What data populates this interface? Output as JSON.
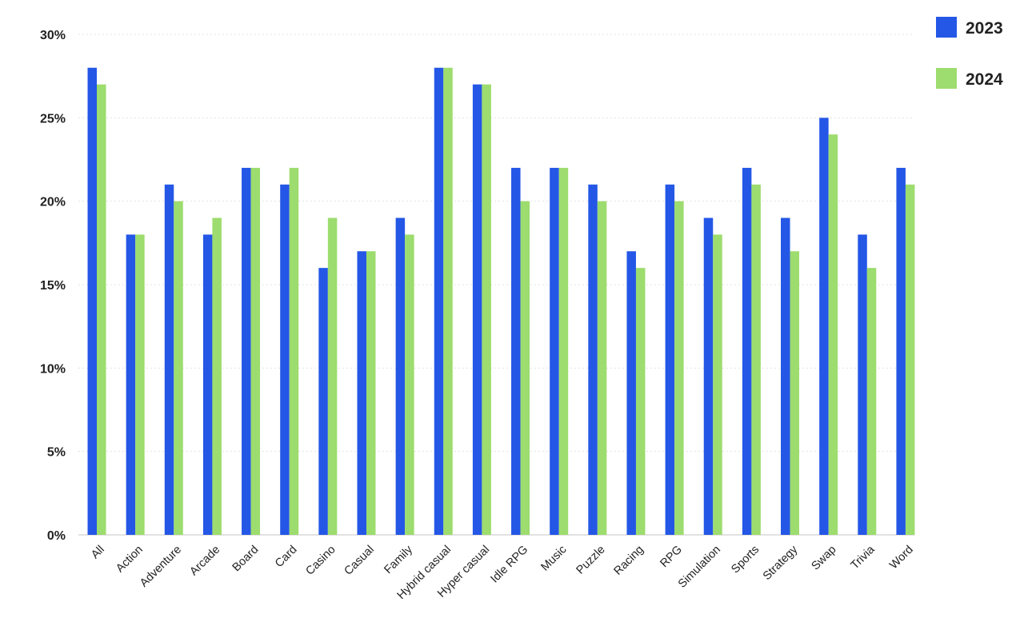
{
  "chart_data": {
    "type": "bar",
    "title": "",
    "xlabel": "",
    "ylabel": "",
    "ylim": [
      0,
      30
    ],
    "y_ticks": [
      0,
      5,
      10,
      15,
      20,
      25,
      30
    ],
    "y_tick_labels": [
      "0%",
      "5%",
      "10%",
      "15%",
      "20%",
      "25%",
      "30%"
    ],
    "grid": "horizontal dotted",
    "legend_position": "top-right",
    "categories": [
      "All",
      "Action",
      "Adventure",
      "Arcade",
      "Board",
      "Card",
      "Casino",
      "Casual",
      "Family",
      "Hybrid casual",
      "Hyper casual",
      "Idle RPG",
      "Music",
      "Puzzle",
      "Racing",
      "RPG",
      "Simulation",
      "Sports",
      "Strategy",
      "Swap",
      "Trivia",
      "Word"
    ],
    "series": [
      {
        "name": "2023",
        "color": "#2457e6",
        "values": [
          28,
          18,
          21,
          18,
          22,
          21,
          16,
          17,
          19,
          28,
          27,
          22,
          22,
          21,
          17,
          21,
          19,
          22,
          19,
          25,
          18,
          22
        ]
      },
      {
        "name": "2024",
        "color": "#9ddc6e",
        "values": [
          27,
          18,
          20,
          19,
          22,
          22,
          19,
          17,
          18,
          28,
          27,
          20,
          22,
          20,
          16,
          20,
          18,
          21,
          17,
          24,
          16,
          21
        ]
      }
    ]
  }
}
